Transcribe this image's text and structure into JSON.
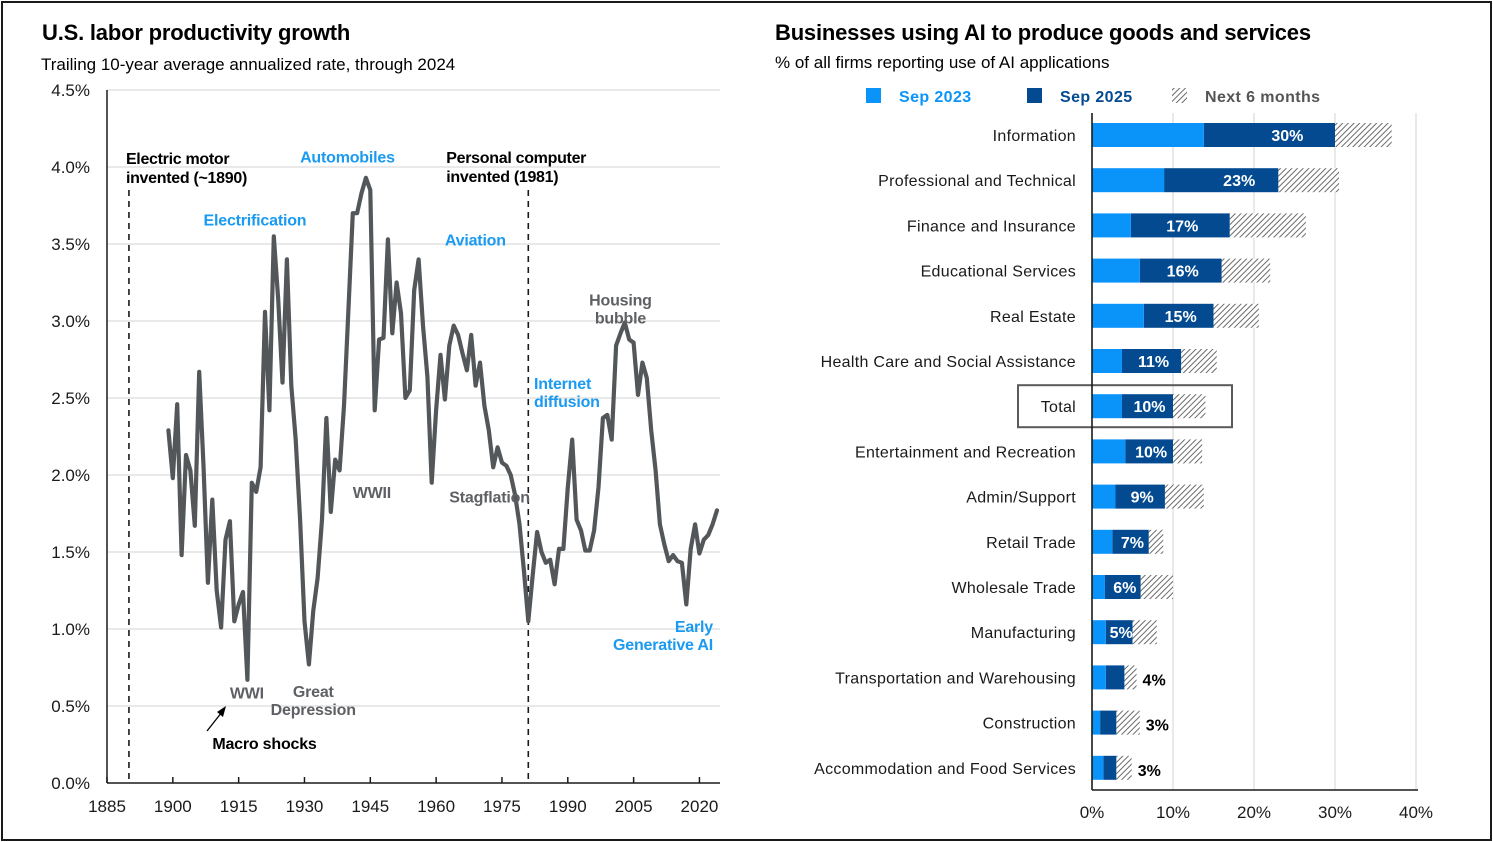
{
  "left_panel": {
    "title": "U.S. labor productivity growth",
    "subtitle": "Trailing 10-year average annualized rate, through 2024"
  },
  "right_panel": {
    "title": "Businesses using AI to produce goods and services",
    "subtitle": "% of all firms reporting use of AI applications"
  },
  "colors": {
    "line": "#54575a",
    "annotation_blue": "#1a9af0",
    "annotation_gray": "#5e6064",
    "sep2023": "#0a94fa",
    "sep2025": "#034a91",
    "hatch": "#6b6b6b",
    "grid": "#e2e2e2",
    "total_box": "#5a5a5a"
  },
  "chart_data": [
    {
      "type": "line",
      "title": "U.S. labor productivity growth",
      "subtitle": "Trailing 10-year average annualized rate, through 2024",
      "xlabel": "",
      "ylabel": "",
      "xlim": [
        1885,
        2024
      ],
      "ylim": [
        0,
        4.5
      ],
      "x_ticks": [
        1885,
        1900,
        1915,
        1930,
        1945,
        1960,
        1975,
        1990,
        2005,
        2020
      ],
      "x_tick_labels": [
        "1885",
        "1900",
        "1915",
        "1930",
        "1945",
        "1960",
        "1975",
        "1990",
        "2005",
        "2020"
      ],
      "y_ticks": [
        0,
        0.5,
        1.0,
        1.5,
        2.0,
        2.5,
        3.0,
        3.5,
        4.0,
        4.5
      ],
      "y_tick_labels": [
        "0.0%",
        "0.5%",
        "1.0%",
        "1.5%",
        "2.0%",
        "2.5%",
        "3.0%",
        "3.5%",
        "4.0%",
        "4.5%"
      ],
      "grid": true,
      "series": [
        {
          "name": "Trailing 10-year average productivity growth",
          "x": [
            1899,
            1900,
            1901,
            1902,
            1903,
            1904,
            1905,
            1906,
            1907,
            1908,
            1909,
            1910,
            1911,
            1912,
            1913,
            1914,
            1915,
            1916,
            1917,
            1918,
            1919,
            1920,
            1921,
            1922,
            1923,
            1924,
            1925,
            1926,
            1927,
            1928,
            1929,
            1930,
            1931,
            1932,
            1933,
            1934,
            1935,
            1936,
            1937,
            1938,
            1939,
            1940,
            1941,
            1942,
            1943,
            1944,
            1945,
            1946,
            1947,
            1948,
            1949,
            1950,
            1951,
            1952,
            1953,
            1954,
            1955,
            1956,
            1957,
            1958,
            1959,
            1960,
            1961,
            1962,
            1963,
            1964,
            1965,
            1966,
            1967,
            1968,
            1969,
            1970,
            1971,
            1972,
            1973,
            1974,
            1975,
            1976,
            1977,
            1978,
            1979,
            1980,
            1981,
            1982,
            1983,
            1984,
            1985,
            1986,
            1987,
            1988,
            1989,
            1990,
            1991,
            1992,
            1993,
            1994,
            1995,
            1996,
            1997,
            1998,
            1999,
            2000,
            2001,
            2002,
            2003,
            2004,
            2005,
            2006,
            2007,
            2008,
            2009,
            2010,
            2011,
            2012,
            2013,
            2014,
            2015,
            2016,
            2017,
            2018,
            2019,
            2020,
            2021,
            2022,
            2023,
            2024
          ],
          "values": [
            2.29,
            1.98,
            2.46,
            1.48,
            2.13,
            2.03,
            1.67,
            2.67,
            2.06,
            1.3,
            1.84,
            1.25,
            1.01,
            1.58,
            1.7,
            1.05,
            1.16,
            1.24,
            0.67,
            1.95,
            1.89,
            2.05,
            3.06,
            2.42,
            3.55,
            3.14,
            2.6,
            3.4,
            2.58,
            2.23,
            1.71,
            1.05,
            0.77,
            1.12,
            1.33,
            1.71,
            2.37,
            1.76,
            2.1,
            2.03,
            2.45,
            3.07,
            3.7,
            3.7,
            3.83,
            3.93,
            3.85,
            2.42,
            2.88,
            2.89,
            3.53,
            2.92,
            3.25,
            3.05,
            2.5,
            2.55,
            3.2,
            3.4,
            2.97,
            2.64,
            1.95,
            2.42,
            2.78,
            2.49,
            2.84,
            2.97,
            2.91,
            2.79,
            2.68,
            2.91,
            2.58,
            2.73,
            2.45,
            2.29,
            2.05,
            2.18,
            2.08,
            2.06,
            2.0,
            1.87,
            1.68,
            1.38,
            1.05,
            1.35,
            1.63,
            1.5,
            1.43,
            1.45,
            1.29,
            1.52,
            1.52,
            1.92,
            2.23,
            1.71,
            1.64,
            1.51,
            1.51,
            1.64,
            1.92,
            2.37,
            2.39,
            2.23,
            2.84,
            2.92,
            2.99,
            2.88,
            2.86,
            2.52,
            2.73,
            2.63,
            2.29,
            2.03,
            1.68,
            1.55,
            1.44,
            1.48,
            1.44,
            1.43,
            1.16,
            1.52,
            1.68,
            1.49,
            1.58,
            1.61,
            1.68,
            1.77
          ]
        }
      ],
      "vertical_lines": [
        {
          "x": 1890,
          "label": [
            "Electric motor",
            "invented (~1890)"
          ]
        },
        {
          "x": 1981,
          "label": [
            "Personal computer",
            "invented (1981)"
          ]
        }
      ],
      "annotations": [
        {
          "text": [
            "Electrification"
          ],
          "color": "blue",
          "x": 1907,
          "y": 3.62
        },
        {
          "text": [
            "Automobiles"
          ],
          "color": "blue",
          "x": 1929,
          "y": 4.03
        },
        {
          "text": [
            "Aviation"
          ],
          "color": "blue",
          "x": 1962,
          "y": 3.49
        },
        {
          "text": [
            "Internet",
            "diffusion"
          ],
          "color": "blue",
          "x": 1985,
          "y": 2.56
        },
        {
          "text": [
            "Early",
            "Generative AI"
          ],
          "color": "blue",
          "x": 2021,
          "y": 0.98
        },
        {
          "text": [
            "Housing",
            "bubble"
          ],
          "color": "gray",
          "x": 2002,
          "y": 3.1
        },
        {
          "text": [
            "WWI"
          ],
          "color": "gray",
          "x": 1913,
          "y": 0.55
        },
        {
          "text": [
            "Great",
            "Depression"
          ],
          "color": "gray",
          "x": 1932,
          "y": 0.56
        },
        {
          "text": [
            "WWII"
          ],
          "color": "gray",
          "x": 1941,
          "y": 1.85
        },
        {
          "text": [
            "Stagflation"
          ],
          "color": "gray",
          "x": 1963,
          "y": 1.82
        },
        {
          "text": [
            "Macro shocks"
          ],
          "color": "black",
          "x": 1909,
          "y": 0.22
        }
      ]
    },
    {
      "type": "bar",
      "orientation": "horizontal",
      "stacked": true,
      "title": "Businesses using AI to produce goods and services",
      "subtitle": "% of all firms reporting use of AI applications",
      "xlim": [
        0,
        40
      ],
      "x_ticks": [
        0,
        10,
        20,
        30,
        40
      ],
      "x_tick_labels": [
        "0%",
        "10%",
        "20%",
        "30%",
        "40%"
      ],
      "grid": true,
      "legend": {
        "placement": "top",
        "entries": [
          "Sep 2023",
          "Sep 2025",
          "Next 6 months"
        ]
      },
      "categories": [
        "Information",
        "Professional and Technical",
        "Finance and Insurance",
        "Educational Services",
        "Real Estate",
        "Health Care and Social Assistance",
        "Total",
        "Entertainment and Recreation",
        "Admin/Support",
        "Retail Trade",
        "Wholesale Trade",
        "Manufacturing",
        "Transportation and Warehousing",
        "Construction",
        "Accommodation and Food Services"
      ],
      "highlight_category": "Total",
      "series": [
        {
          "name": "Sep 2023",
          "values": [
            13.8,
            8.9,
            4.8,
            5.9,
            6.4,
            3.7,
            3.7,
            4.1,
            2.9,
            2.5,
            1.6,
            1.7,
            1.7,
            1.0,
            1.4
          ]
        },
        {
          "name": "Sep 2025",
          "values": [
            30,
            23,
            17,
            16,
            15,
            11,
            10,
            10,
            9,
            7,
            6,
            5,
            4,
            3,
            3
          ]
        },
        {
          "name": "Next 6 months",
          "values": [
            37.0,
            30.5,
            26.4,
            22.0,
            20.6,
            15.4,
            14.0,
            13.6,
            13.8,
            8.8,
            10.0,
            8.0,
            5.5,
            5.9,
            4.9
          ]
        }
      ],
      "data_labels": [
        "30%",
        "23%",
        "17%",
        "16%",
        "15%",
        "11%",
        "10%",
        "10%",
        "9%",
        "7%",
        "6%",
        "5%",
        "4%",
        "3%",
        "3%"
      ]
    }
  ]
}
